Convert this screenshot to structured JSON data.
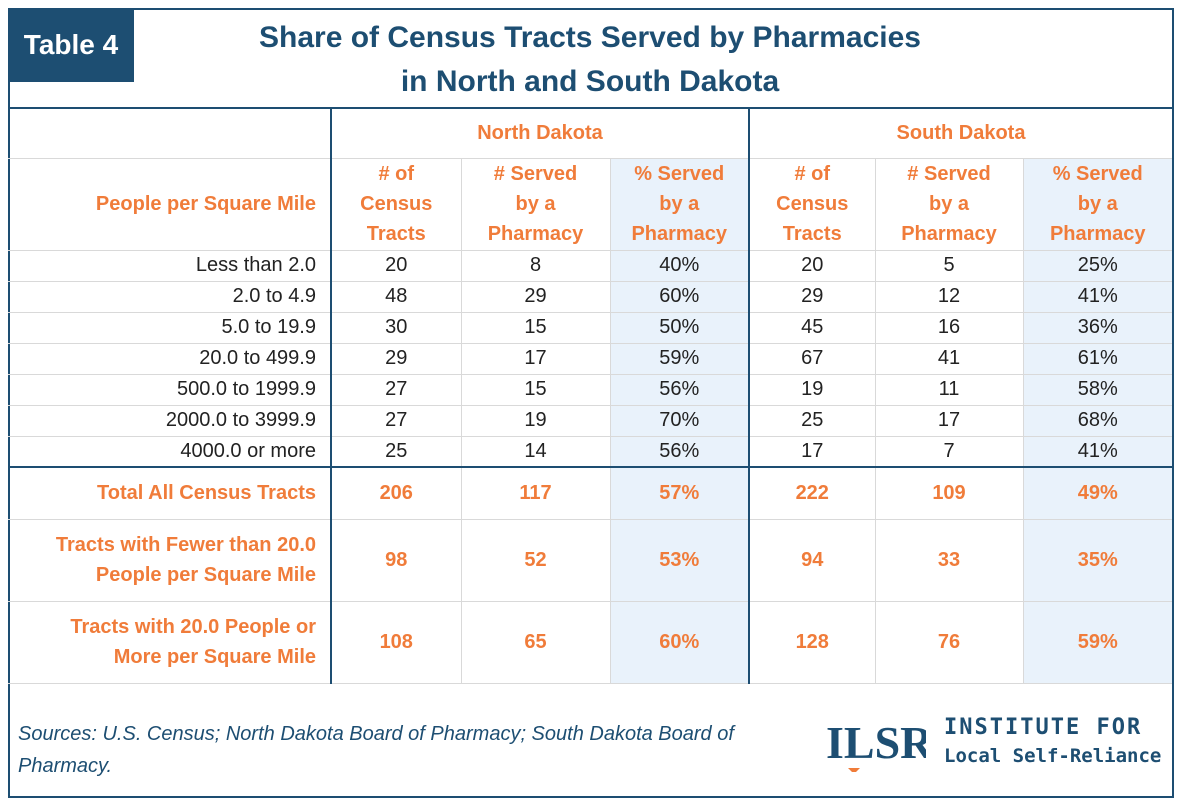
{
  "badge": "Table 4",
  "title": {
    "line1": "Share of Census Tracts Served by Pharmacies",
    "line2": "in North and South Dakota"
  },
  "groups": {
    "nd": "North Dakota",
    "sd": "South Dakota"
  },
  "headers": {
    "row_label": "People per Square Mile",
    "tracts": [
      "# of",
      "Census",
      "Tracts"
    ],
    "served": [
      "# Served",
      "by a",
      "Pharmacy"
    ],
    "pct": [
      "% Served",
      "by a",
      "Pharmacy"
    ]
  },
  "rows": [
    {
      "label": "Less than 2.0",
      "nd": [
        "20",
        "8",
        "40%"
      ],
      "sd": [
        "20",
        "5",
        "25%"
      ]
    },
    {
      "label": "2.0 to 4.9",
      "nd": [
        "48",
        "29",
        "60%"
      ],
      "sd": [
        "29",
        "12",
        "41%"
      ]
    },
    {
      "label": "5.0 to 19.9",
      "nd": [
        "30",
        "15",
        "50%"
      ],
      "sd": [
        "45",
        "16",
        "36%"
      ]
    },
    {
      "label": "20.0 to 499.9",
      "nd": [
        "29",
        "17",
        "59%"
      ],
      "sd": [
        "67",
        "41",
        "61%"
      ]
    },
    {
      "label": "500.0 to 1999.9",
      "nd": [
        "27",
        "15",
        "56%"
      ],
      "sd": [
        "19",
        "11",
        "58%"
      ]
    },
    {
      "label": "2000.0 to 3999.9",
      "nd": [
        "27",
        "19",
        "70%"
      ],
      "sd": [
        "25",
        "17",
        "68%"
      ]
    },
    {
      "label": "4000.0 or more",
      "nd": [
        "25",
        "14",
        "56%"
      ],
      "sd": [
        "17",
        "7",
        "41%"
      ]
    }
  ],
  "totals": [
    {
      "label": [
        "Total All Census Tracts"
      ],
      "nd": [
        "206",
        "117",
        "57%"
      ],
      "sd": [
        "222",
        "109",
        "49%"
      ]
    },
    {
      "label": [
        "Tracts with Fewer than 20.0",
        "People per Square Mile"
      ],
      "nd": [
        "98",
        "52",
        "53%"
      ],
      "sd": [
        "94",
        "33",
        "35%"
      ]
    },
    {
      "label": [
        "Tracts with 20.0 People or",
        "More per Square Mile"
      ],
      "nd": [
        "108",
        "65",
        "60%"
      ],
      "sd": [
        "128",
        "76",
        "59%"
      ]
    }
  ],
  "sources": "Sources: U.S. Census; North Dakota Board of Pharmacy; South Dakota Board of Pharmacy.",
  "logo": {
    "mark": "ILSR",
    "line1": "INSTITUTE FOR",
    "line2": "Local Self-Reliance"
  },
  "colors": {
    "navy": "#1d4e72",
    "orange": "#f07c3a",
    "shade": "#e9f2fb"
  }
}
